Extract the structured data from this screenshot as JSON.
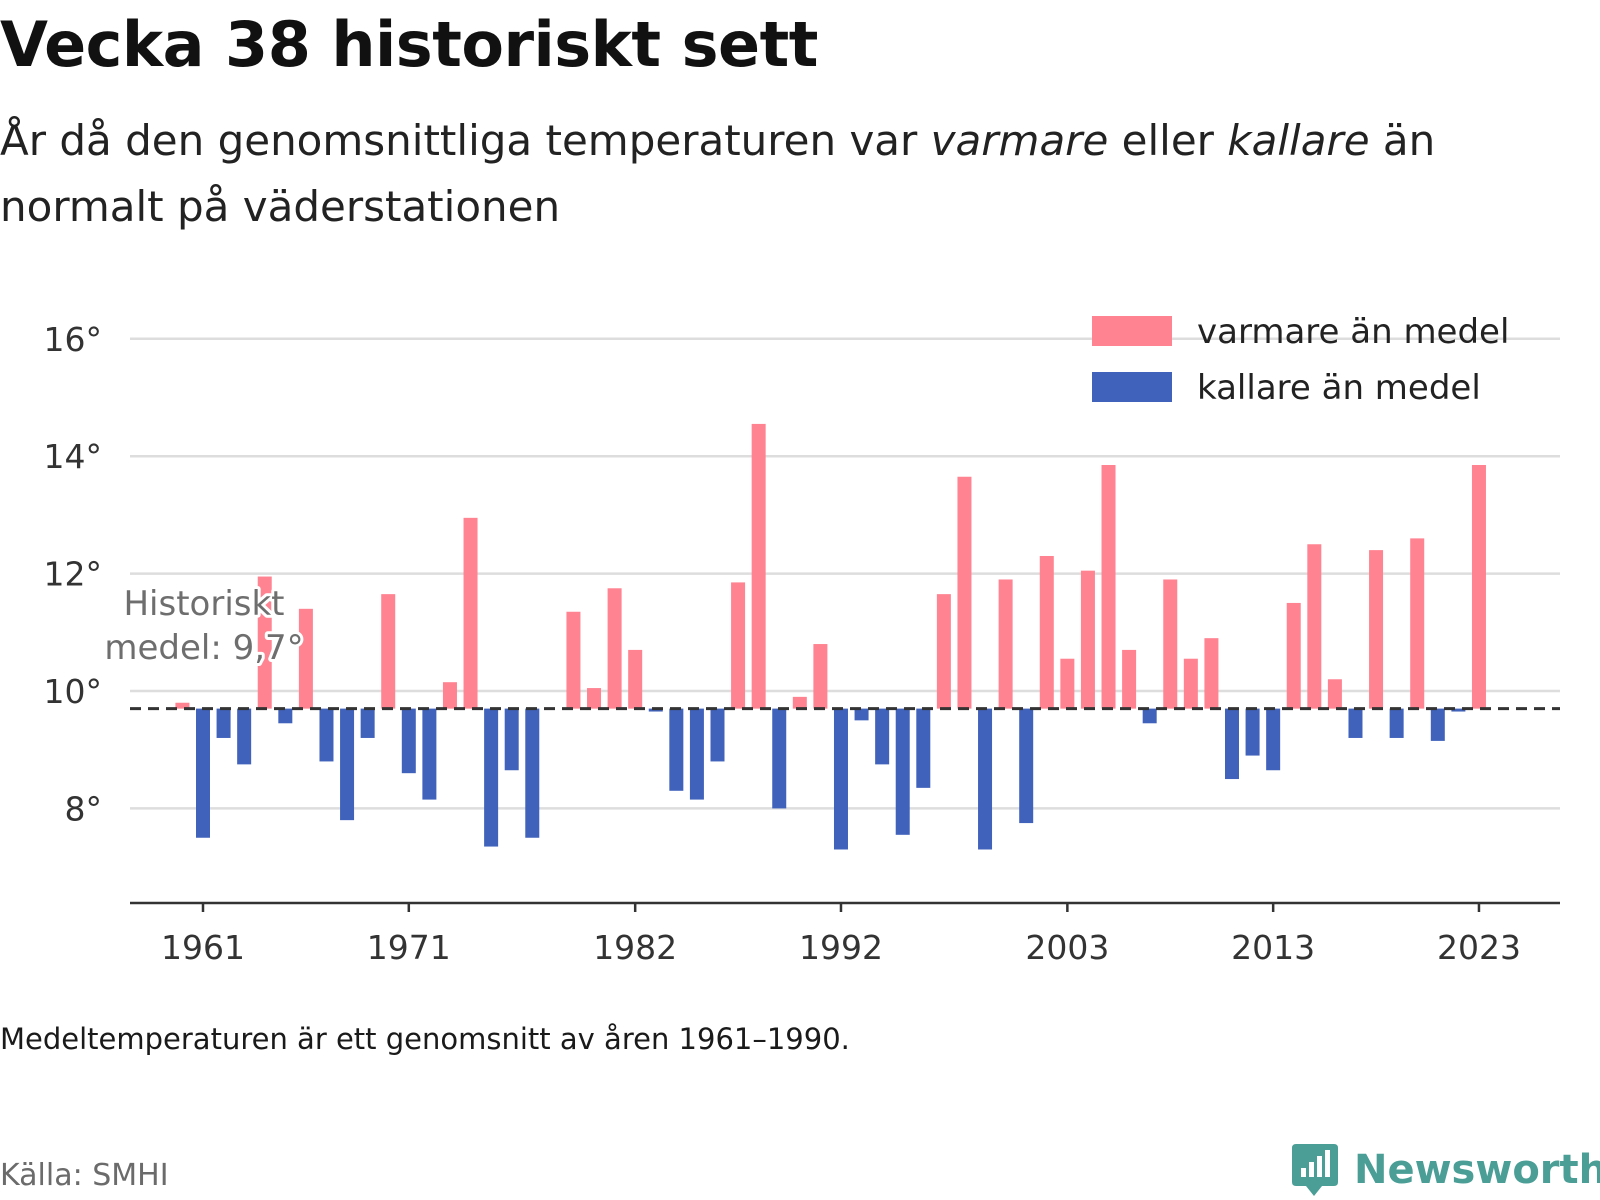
{
  "title": "Vecka 38 historiskt sett",
  "subtitle": {
    "part1": "År då den genomsnittliga temperaturen var ",
    "warm_word": "varmare",
    "part2": " eller ",
    "cold_word": "kallare",
    "part3": " än normalt på väderstationen"
  },
  "note": "Medeltemperaturen är ett genomsnitt av åren 1961–1990.",
  "source": "Källa: SMHI",
  "brand": {
    "name": "Newsworthy",
    "icon": "newsworthy-logo-icon"
  },
  "colors": {
    "warm": "#ff8391",
    "cold": "#4062bb",
    "grid": "#dddddd",
    "axis": "#333333",
    "mean_line": "#333333",
    "brand": "#4a9e96"
  },
  "chart_data": {
    "type": "bar",
    "title": "Vecka 38 historiskt sett",
    "mean": 9.7,
    "mean_label_lines": [
      "Historiskt",
      "medel: 9,7°"
    ],
    "ylim": [
      6.2,
      16.5
    ],
    "yticks": [
      8,
      10,
      12,
      14,
      16
    ],
    "ytick_labels": [
      "8°",
      "10°",
      "12°",
      "14°",
      "16°"
    ],
    "xticks": [
      1961,
      1971,
      1982,
      1992,
      2003,
      2013,
      2023
    ],
    "xtick_labels": [
      "1961",
      "1971",
      "1982",
      "1992",
      "2003",
      "2013",
      "2023"
    ],
    "grid": true,
    "legend": {
      "position": "top-right",
      "entries": [
        {
          "label": "varmare än medel",
          "color": "#ff8391"
        },
        {
          "label": "kallare än medel",
          "color": "#4062bb"
        }
      ]
    },
    "series": [
      {
        "name": "varmare än medel",
        "color": "#ff8391"
      },
      {
        "name": "kallare än medel",
        "color": "#4062bb"
      }
    ],
    "categories": [
      1960,
      1961,
      1962,
      1963,
      1964,
      1965,
      1966,
      1967,
      1968,
      1969,
      1970,
      1971,
      1972,
      1973,
      1974,
      1975,
      1976,
      1977,
      1978,
      1979,
      1980,
      1981,
      1982,
      1983,
      1984,
      1985,
      1986,
      1987,
      1988,
      1989,
      1990,
      1991,
      1992,
      1993,
      1994,
      1995,
      1996,
      1997,
      1998,
      1999,
      2000,
      2001,
      2002,
      2003,
      2004,
      2005,
      2006,
      2007,
      2008,
      2009,
      2010,
      2011,
      2012,
      2013,
      2014,
      2015,
      2016,
      2017,
      2018,
      2019,
      2020,
      2021,
      2022,
      2023
    ],
    "values": [
      9.8,
      7.5,
      9.2,
      8.75,
      11.95,
      9.45,
      11.4,
      8.8,
      7.8,
      9.2,
      11.65,
      8.6,
      8.15,
      10.15,
      12.95,
      7.35,
      8.65,
      7.5,
      null,
      11.35,
      10.05,
      11.75,
      10.7,
      9.65,
      8.3,
      8.15,
      8.8,
      11.85,
      14.55,
      8.0,
      9.9,
      10.8,
      7.3,
      9.5,
      8.75,
      7.55,
      8.35,
      11.65,
      13.65,
      7.3,
      11.9,
      7.75,
      12.3,
      10.55,
      12.05,
      13.85,
      10.7,
      9.45,
      11.9,
      10.55,
      10.9,
      8.5,
      8.9,
      8.65,
      11.5,
      12.5,
      10.2,
      9.2,
      12.4,
      9.2,
      12.6,
      9.15,
      9.65,
      13.85
    ]
  }
}
